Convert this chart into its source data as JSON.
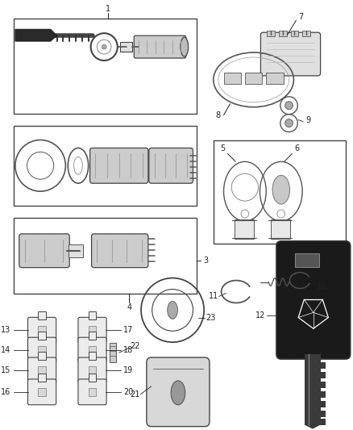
{
  "bg_color": "#ffffff",
  "fig_width": 4.39,
  "fig_height": 5.33,
  "dpi": 100,
  "dark": "#222222",
  "gray": "#555555",
  "comp_fill": "#e0e0e0",
  "comp_edge": "#444444"
}
